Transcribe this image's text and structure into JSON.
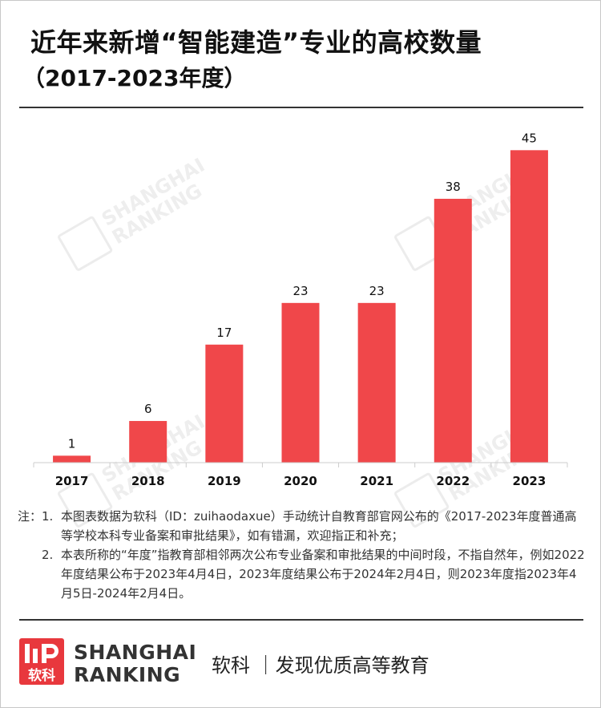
{
  "header": {
    "title": "近年来新增“智能建造”专业的高校数量",
    "subtitle": "（2017-2023年度）"
  },
  "chart_data": {
    "type": "bar",
    "title": "近年来新增“智能建造”专业的高校数量",
    "subtitle": "（2017-2023年度）",
    "categories": [
      "2017",
      "2018",
      "2019",
      "2020",
      "2021",
      "2022",
      "2023"
    ],
    "values": [
      1,
      6,
      17,
      23,
      23,
      38,
      45
    ],
    "xlabel": "",
    "ylabel": "",
    "ylim": [
      0,
      47
    ],
    "grid": false,
    "legend": "none",
    "bar_color": "#f0474a"
  },
  "notes": {
    "prefix": "注：",
    "items": [
      {
        "num": "1.",
        "text": "本图表数据为软科（ID：zuihaodaxue）手动统计自教育部官网公布的《2017-2023年度普通高等学校本科专业备案和审批结果》，如有错漏，欢迎指正和补充；"
      },
      {
        "num": "2.",
        "text": "本表所称的“年度”指教育部相邻两次公布专业备案和审批结果的中间时段，不指自然年，例如2022年度结果公布于2023年4月4日，2023年度结果公布于2024年2月4日，则2023年度指2023年4月5日-2024年2月4日。"
      }
    ]
  },
  "watermark": {
    "line1": "SHANGHAI",
    "line2": "RANKING"
  },
  "footer": {
    "logo_text": "软科",
    "brand_line1": "SHANGHAI",
    "brand_line2": "RANKING",
    "slogan": "软科 ｜发现优质高等教育"
  },
  "colors": {
    "accent": "#f0474a",
    "rule": "#333333"
  }
}
